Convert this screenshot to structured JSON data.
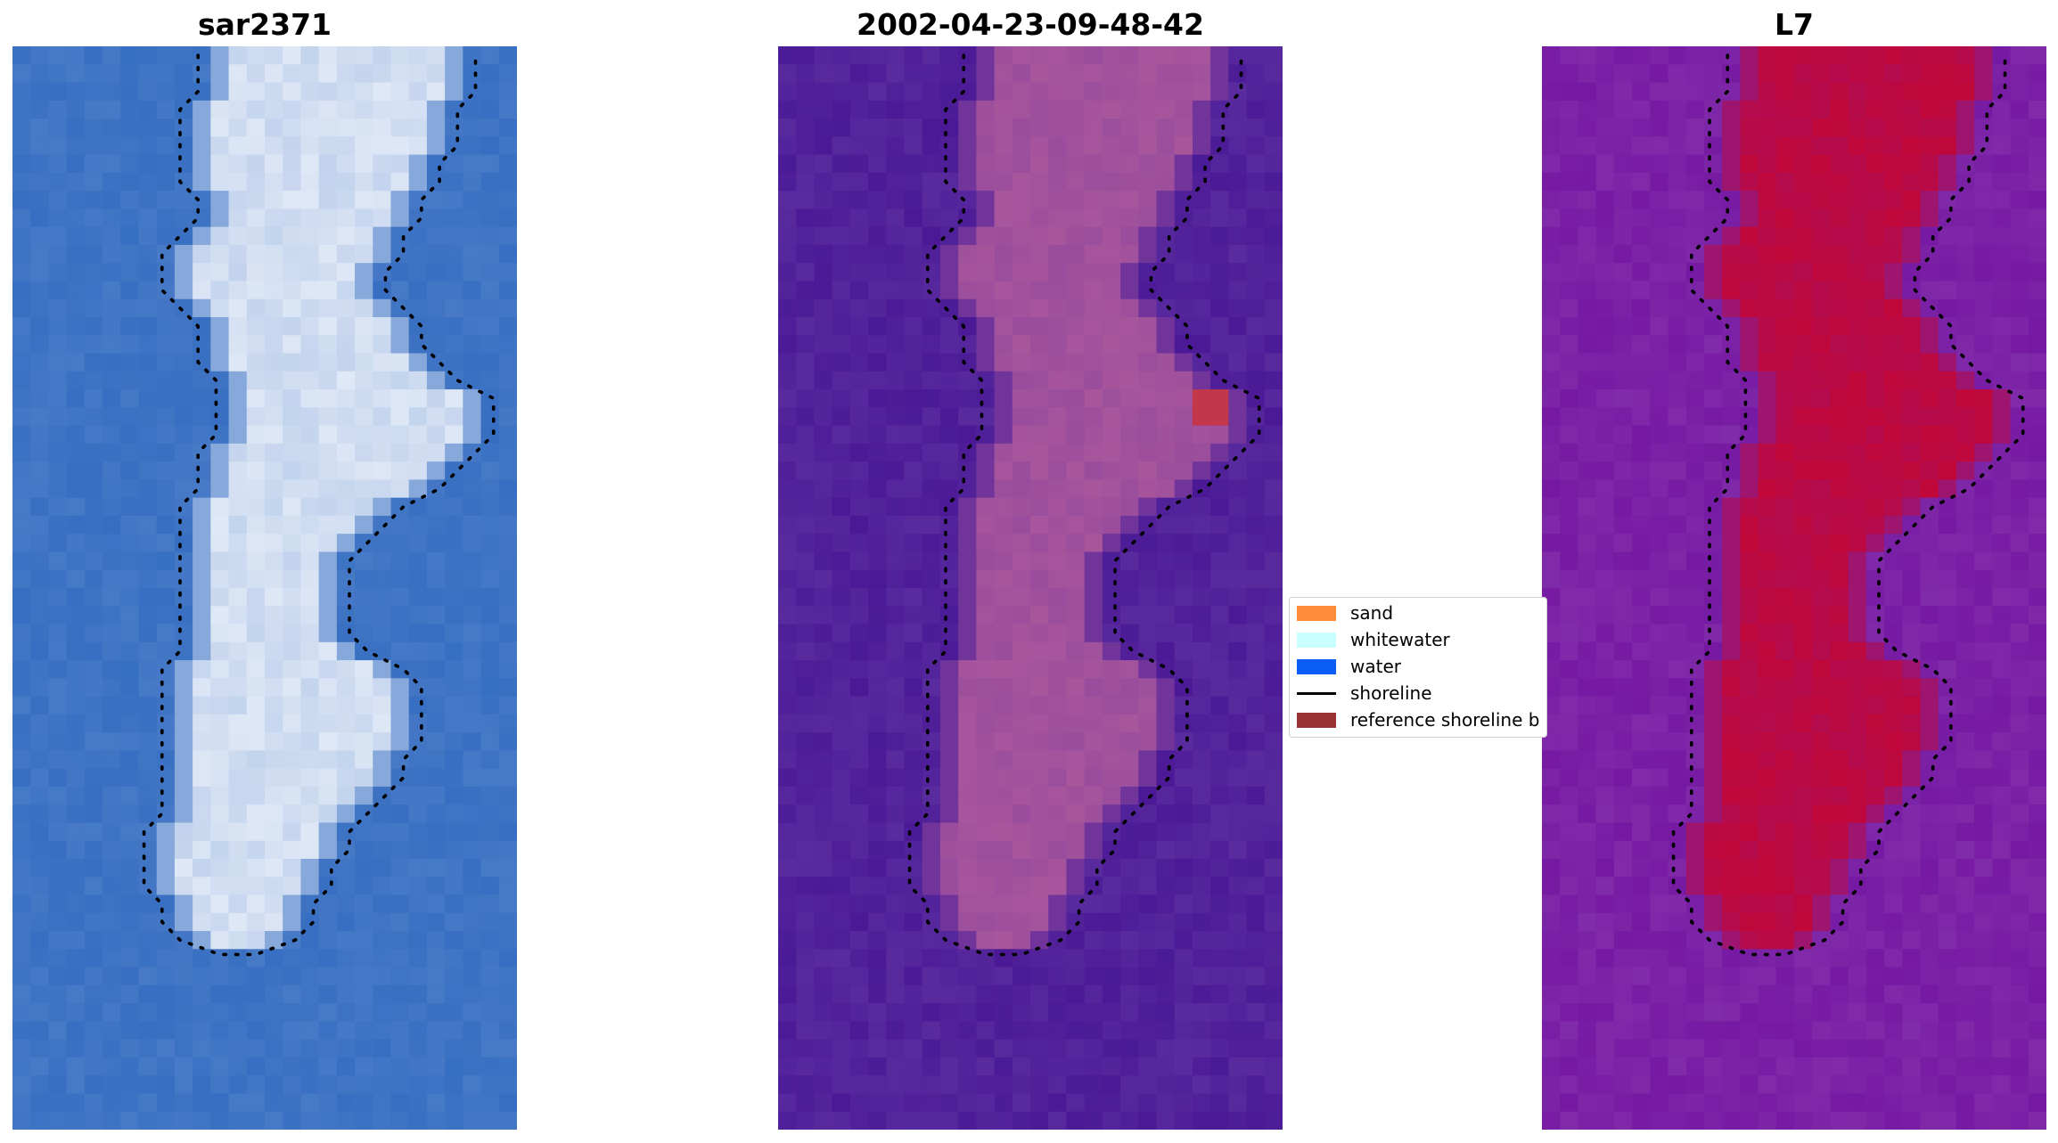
{
  "panels": [
    {
      "title": "sar2371",
      "palette": "rgb"
    },
    {
      "title": "2002-04-23-09-48-42",
      "palette": "classified"
    },
    {
      "title": "L7",
      "palette": "index"
    }
  ],
  "legend": {
    "items": [
      {
        "label": "sand",
        "color": "#ff8c3a",
        "kind": "patch"
      },
      {
        "label": "whitewater",
        "color": "#c8ffff",
        "kind": "patch"
      },
      {
        "label": "water",
        "color": "#0a5ef5",
        "kind": "patch"
      },
      {
        "label": "shoreline",
        "color": "#000000",
        "kind": "line"
      },
      {
        "label": "reference shoreline b",
        "color": "#993333",
        "kind": "patch"
      }
    ]
  },
  "colors": {
    "water_rgb": "#3f74c4",
    "island_rgb": "#dfe8f6",
    "background_classified": "#52229a",
    "island_classified": "#a8569c",
    "sand_highlight": "#c2374a",
    "background_index": "#7b22a6",
    "island_index": "#c0073a",
    "shoreline": "#000000"
  }
}
